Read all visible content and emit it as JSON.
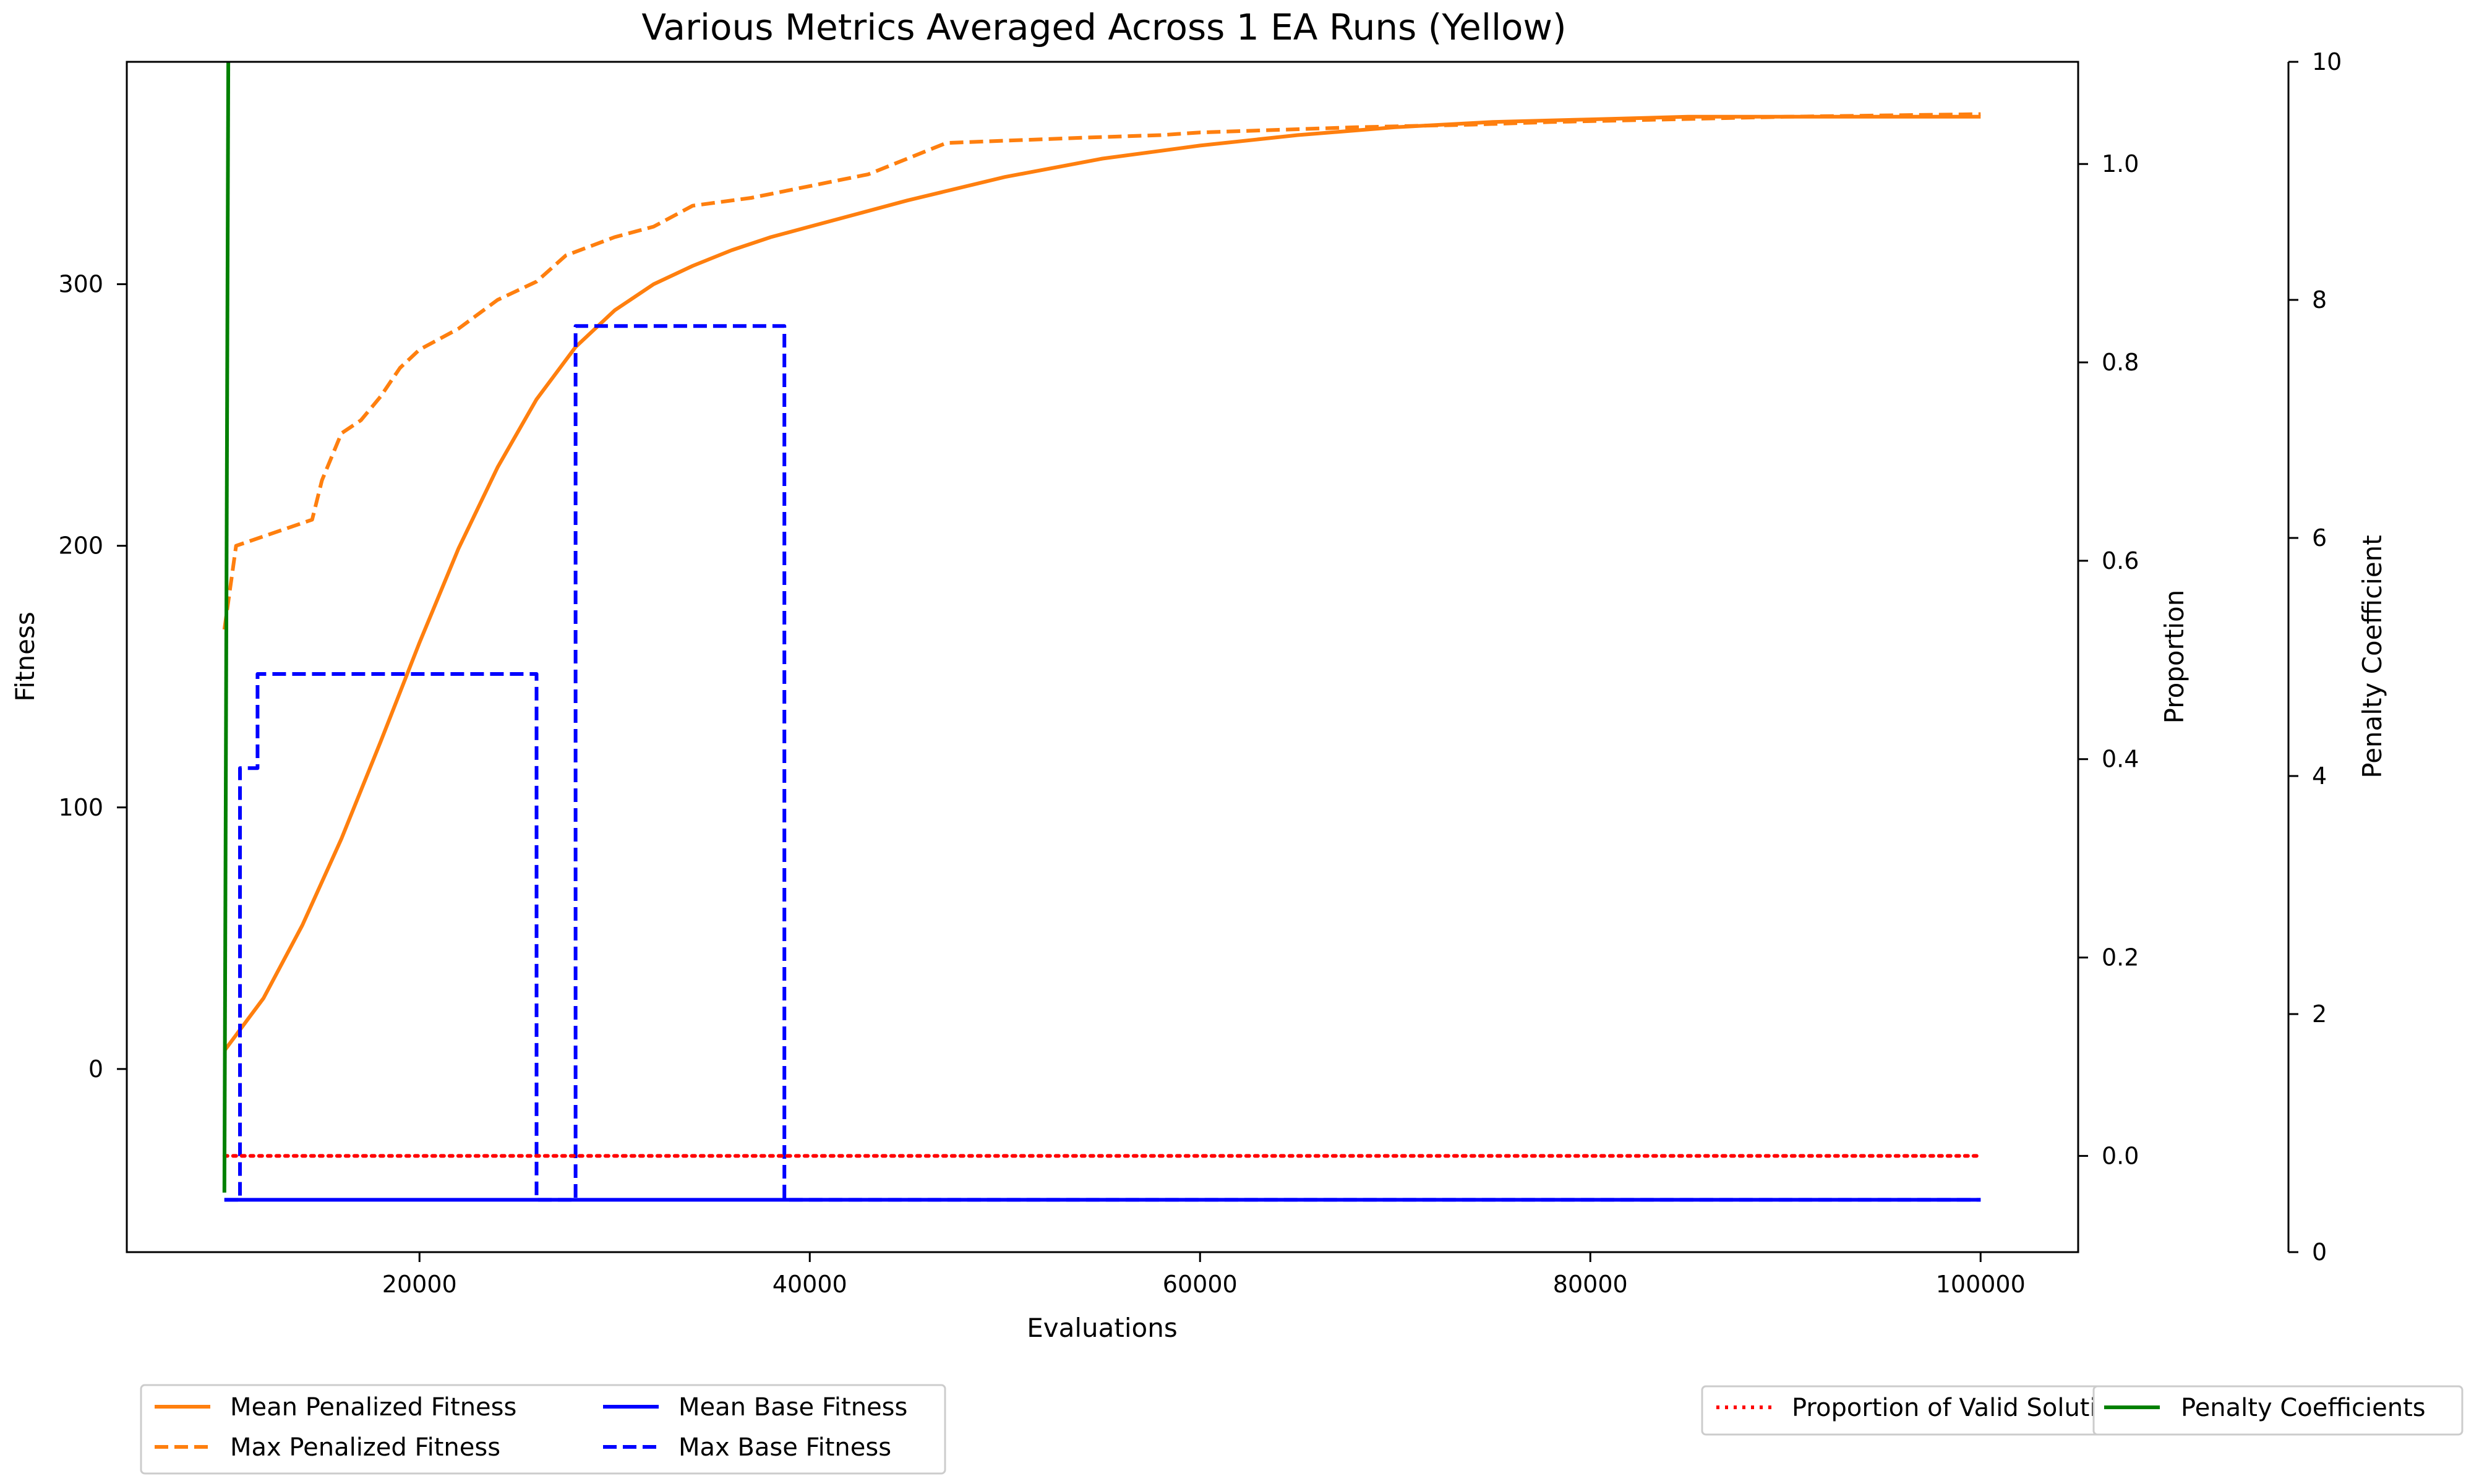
{
  "chart_data": {
    "type": "line",
    "title": "Various Metrics Averaged Across 1 EA Runs (Yellow)",
    "xlabel": "Evaluations",
    "ylabel": "Fitness",
    "y2label": "Proportion",
    "y3label": "Penalty Coefficient",
    "xlim": [
      5000,
      105000
    ],
    "ylim": [
      -70,
      385
    ],
    "y2lim": [
      -0.097,
      1.103
    ],
    "y3lim": [
      0,
      10
    ],
    "xticks": [
      20000,
      40000,
      60000,
      80000,
      100000
    ],
    "yticks": [
      0,
      100,
      200,
      300
    ],
    "y2ticks": [
      0.0,
      0.2,
      0.4,
      0.6,
      0.8,
      1.0
    ],
    "y3ticks": [
      0,
      2,
      4,
      6,
      8,
      10
    ],
    "grid": false,
    "colors": {
      "orange": "#ff7f0e",
      "blue": "#0000ff",
      "red": "#ff0000",
      "green": "#008000"
    },
    "series": [
      {
        "name": "Mean Penalized Fitness",
        "axis": "left",
        "style": "solid",
        "color": "#ff7f0e",
        "points": [
          [
            10000,
            7
          ],
          [
            12000,
            27
          ],
          [
            14000,
            55
          ],
          [
            16000,
            88
          ],
          [
            18000,
            125
          ],
          [
            20000,
            163
          ],
          [
            22000,
            199
          ],
          [
            24000,
            230
          ],
          [
            26000,
            256
          ],
          [
            28000,
            276
          ],
          [
            30000,
            290
          ],
          [
            32000,
            300
          ],
          [
            34000,
            307
          ],
          [
            36000,
            313
          ],
          [
            38000,
            318
          ],
          [
            40000,
            322
          ],
          [
            45000,
            332
          ],
          [
            50000,
            341
          ],
          [
            55000,
            348
          ],
          [
            60000,
            353
          ],
          [
            65000,
            357
          ],
          [
            70000,
            360
          ],
          [
            75000,
            362
          ],
          [
            80000,
            363
          ],
          [
            85000,
            364
          ],
          [
            90000,
            364
          ],
          [
            95000,
            364
          ],
          [
            100000,
            364
          ]
        ]
      },
      {
        "name": "Max Penalized Fitness",
        "axis": "left",
        "style": "dashed",
        "color": "#ff7f0e",
        "points": [
          [
            10000,
            168
          ],
          [
            10600,
            200
          ],
          [
            14500,
            210
          ],
          [
            15000,
            225
          ],
          [
            16000,
            243
          ],
          [
            17000,
            248
          ],
          [
            18000,
            257
          ],
          [
            19000,
            268
          ],
          [
            20000,
            275
          ],
          [
            22000,
            283
          ],
          [
            24000,
            294
          ],
          [
            26000,
            301
          ],
          [
            27500,
            311
          ],
          [
            30000,
            318
          ],
          [
            32000,
            322
          ],
          [
            34000,
            330
          ],
          [
            37000,
            333
          ],
          [
            39000,
            336
          ],
          [
            41000,
            339
          ],
          [
            43000,
            342
          ],
          [
            47000,
            354
          ],
          [
            54000,
            356
          ],
          [
            58000,
            357
          ],
          [
            60000,
            358
          ],
          [
            64000,
            359
          ],
          [
            68000,
            360
          ],
          [
            74000,
            361
          ],
          [
            78000,
            362
          ],
          [
            84000,
            363
          ],
          [
            90000,
            364
          ],
          [
            100000,
            365
          ]
        ]
      },
      {
        "name": "Mean Base Fitness",
        "axis": "left",
        "style": "solid",
        "color": "#0000ff",
        "points": [
          [
            10000,
            -50
          ],
          [
            100000,
            -50
          ]
        ]
      },
      {
        "name": "Max Base Fitness",
        "axis": "left",
        "style": "dashed",
        "color": "#0000ff",
        "points": [
          [
            10000,
            -50
          ],
          [
            10800,
            -50
          ],
          [
            10800,
            115
          ],
          [
            11700,
            115
          ],
          [
            11700,
            151
          ],
          [
            26000,
            151
          ],
          [
            26000,
            -50
          ],
          [
            28000,
            -50
          ],
          [
            28000,
            284
          ],
          [
            38700,
            284
          ],
          [
            38700,
            -50
          ],
          [
            100000,
            -50
          ]
        ]
      },
      {
        "name": "Proportion of Valid Solutions",
        "axis": "right",
        "style": "dotted",
        "color": "#ff0000",
        "points": [
          [
            10000,
            0.0
          ],
          [
            100000,
            0.0
          ]
        ]
      },
      {
        "name": "Penalty Coefficients",
        "axis": "right2",
        "style": "solid",
        "color": "#008000",
        "points": [
          [
            10000,
            0.5
          ],
          [
            10200,
            10
          ]
        ]
      }
    ],
    "legend_left": {
      "placement": "lower-left, below axes",
      "entries": [
        "Mean Penalized Fitness",
        "Max Penalized Fitness",
        "Mean Base Fitness",
        "Max Base Fitness"
      ]
    },
    "legend_right": {
      "placement": "lower-right, below axes",
      "entries": [
        "Proportion of Valid Solutions",
        "Penalty Coefficients"
      ]
    }
  }
}
